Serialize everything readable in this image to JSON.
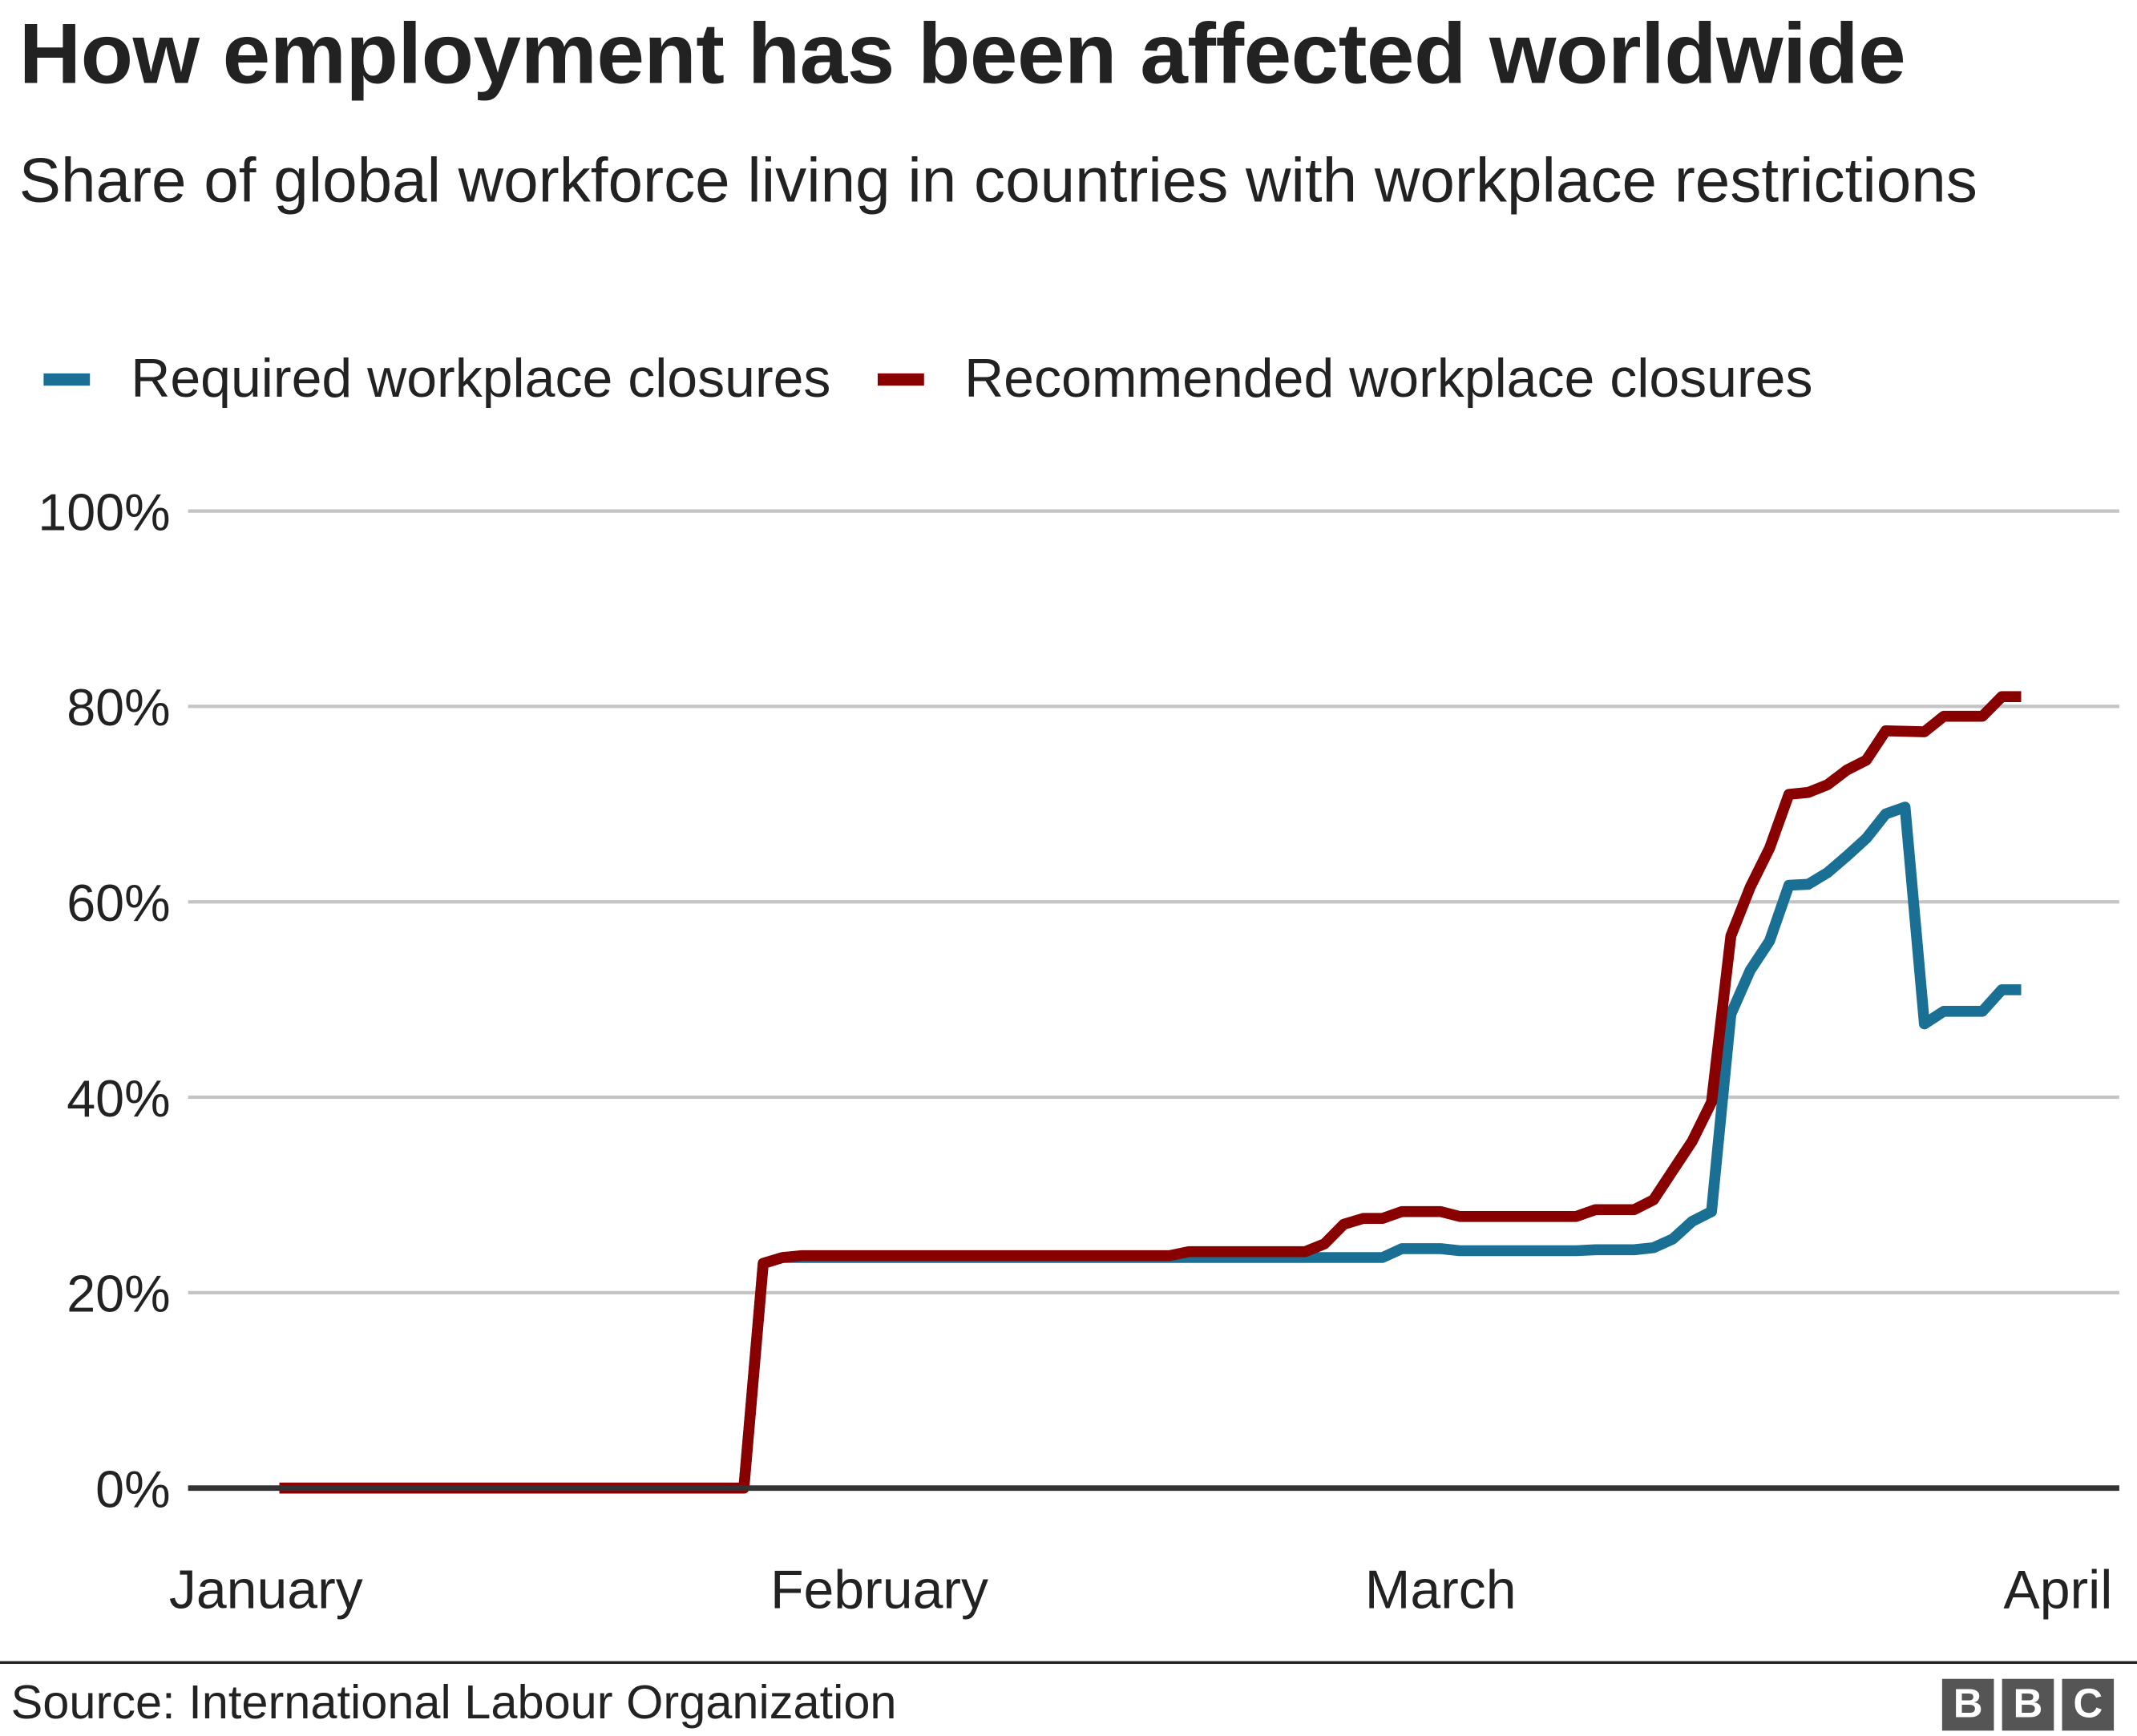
{
  "title": "How employment has been affected worldwide",
  "subtitle": "Share of global workforce living in countries with workplace restrictions",
  "source": "Source: International Labour Organization",
  "logo": [
    "B",
    "B",
    "C"
  ],
  "chart_data": {
    "type": "line",
    "title": "How employment has been affected worldwide",
    "subtitle": "Share of global workforce living in countries with workplace restrictions",
    "xlabel": "",
    "ylabel": "",
    "x_ticks": [
      "January",
      "February",
      "March",
      "April"
    ],
    "x_range": [
      "Jan 1",
      "Apr 1"
    ],
    "ylim": [
      0,
      100
    ],
    "y_ticks": [
      0,
      20,
      40,
      60,
      80,
      100
    ],
    "y_tick_labels": [
      "0%",
      "20%",
      "40%",
      "60%",
      "80%",
      "100%"
    ],
    "grid": true,
    "legend": "top-left",
    "series": [
      {
        "name": "Required workplace closures",
        "color": "#1a7094",
        "points": [
          [
            "Jan 1",
            0
          ],
          [
            "Jan 25",
            0
          ],
          [
            "Jan 26",
            23
          ],
          [
            "Jan 27",
            23.6
          ],
          [
            "Feb 27",
            23.6
          ],
          [
            "Feb 28",
            24.5
          ],
          [
            "Mar 1",
            24.5
          ],
          [
            "Mar 2",
            24.3
          ],
          [
            "Mar 8",
            24.3
          ],
          [
            "Mar 9",
            24.4
          ],
          [
            "Mar 11",
            24.4
          ],
          [
            "Mar 12",
            24.6
          ],
          [
            "Mar 13",
            25.5
          ],
          [
            "Mar 14",
            27.3
          ],
          [
            "Mar 15",
            28.3
          ],
          [
            "Mar 16",
            48.5
          ],
          [
            "Mar 17",
            53
          ],
          [
            "Mar 18",
            56
          ],
          [
            "Mar 19",
            61.7
          ],
          [
            "Mar 20",
            61.8
          ],
          [
            "Mar 21",
            63
          ],
          [
            "Mar 22",
            64.7
          ],
          [
            "Mar 23",
            66.5
          ],
          [
            "Mar 24",
            69
          ],
          [
            "Mar 25",
            69.7
          ],
          [
            "Mar 26",
            47.5
          ],
          [
            "Mar 27",
            48.8
          ],
          [
            "Mar 29",
            48.8
          ],
          [
            "Mar 30",
            51
          ],
          [
            "Mar 31",
            51
          ]
        ]
      },
      {
        "name": "Recommended workplace closures",
        "color": "#880000",
        "points": [
          [
            "Jan 1",
            0
          ],
          [
            "Jan 25",
            0
          ],
          [
            "Jan 26",
            23
          ],
          [
            "Jan 27",
            23.6
          ],
          [
            "Jan 28",
            23.8
          ],
          [
            "Feb 16",
            23.8
          ],
          [
            "Feb 17",
            24.2
          ],
          [
            "Feb 23",
            24.2
          ],
          [
            "Feb 24",
            25
          ],
          [
            "Feb 25",
            27
          ],
          [
            "Feb 26",
            27.6
          ],
          [
            "Feb 27",
            27.6
          ],
          [
            "Feb 28",
            28.3
          ],
          [
            "Mar 1",
            28.3
          ],
          [
            "Mar 2",
            27.8
          ],
          [
            "Mar 8",
            27.8
          ],
          [
            "Mar 9",
            28.5
          ],
          [
            "Mar 11",
            28.5
          ],
          [
            "Mar 12",
            29.5
          ],
          [
            "Mar 13",
            32.5
          ],
          [
            "Mar 14",
            35.5
          ],
          [
            "Mar 15",
            39.5
          ],
          [
            "Mar 16",
            56.5
          ],
          [
            "Mar 17",
            61.5
          ],
          [
            "Mar 18",
            65.5
          ],
          [
            "Mar 19",
            71
          ],
          [
            "Mar 20",
            71.2
          ],
          [
            "Mar 21",
            72
          ],
          [
            "Mar 22",
            73.5
          ],
          [
            "Mar 23",
            74.5
          ],
          [
            "Mar 24",
            77.5
          ],
          [
            "Mar 26",
            77.4
          ],
          [
            "Mar 27",
            79
          ],
          [
            "Mar 29",
            79
          ],
          [
            "Mar 30",
            81
          ],
          [
            "Mar 31",
            81
          ]
        ]
      }
    ]
  }
}
